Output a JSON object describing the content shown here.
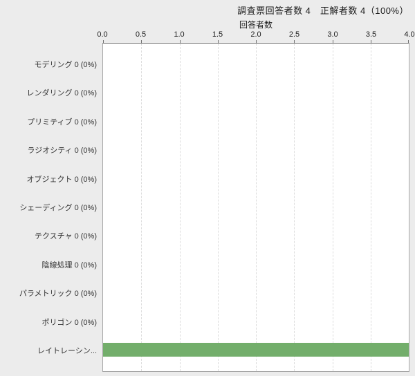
{
  "header": {
    "summary": "調査票回答者数 4　正解者数 4（100%）"
  },
  "chart": {
    "axis_title": "回答者数",
    "xticks": [
      "0.0",
      "0.5",
      "1.0",
      "1.5",
      "2.0",
      "2.5",
      "3.0",
      "3.5",
      "4.0"
    ],
    "rows": [
      {
        "display": "モデリング 0 (0%)"
      },
      {
        "display": "レンダリング 0 (0%)"
      },
      {
        "display": "プリミティブ 0 (0%)"
      },
      {
        "display": "ラジオシティ 0 (0%)"
      },
      {
        "display": "オブジェクト 0 (0%)"
      },
      {
        "display": "シェーディング 0 (0%)"
      },
      {
        "display": "テクスチャ 0 (0%)"
      },
      {
        "display": "陰線処理 0 (0%)"
      },
      {
        "display": "パラメトリック 0 (0%)"
      },
      {
        "display": "ポリゴン 0 (0%)"
      },
      {
        "display": "レイトレーシン..."
      }
    ],
    "bar_color": "#73ae6b"
  },
  "chart_data": {
    "type": "bar",
    "orientation": "horizontal",
    "title": "回答者数",
    "annotation": "調査票回答者数 4　正解者数 4（100%）",
    "categories": [
      "モデリング",
      "レンダリング",
      "プリミティブ",
      "ラジオシティ",
      "オブジェクト",
      "シェーディング",
      "テクスチャ",
      "陰線処理",
      "パラメトリック",
      "ポリゴン",
      "レイトレーシン..."
    ],
    "values": [
      0,
      0,
      0,
      0,
      0,
      0,
      0,
      0,
      0,
      0,
      4
    ],
    "category_value_labels": [
      "0 (0%)",
      "0 (0%)",
      "0 (0%)",
      "0 (0%)",
      "0 (0%)",
      "0 (0%)",
      "0 (0%)",
      "0 (0%)",
      "0 (0%)",
      "0 (0%)",
      ""
    ],
    "xlabel": "回答者数",
    "ylabel": "",
    "xlim": [
      0.0,
      4.0
    ],
    "xtick_values": [
      0.0,
      0.5,
      1.0,
      1.5,
      2.0,
      2.5,
      3.0,
      3.5,
      4.0
    ],
    "grid": "vertical-dashed",
    "legend_position": "none",
    "bar_color": "#73ae6b",
    "plot_background": "#ffffff",
    "page_background": "#ececec"
  }
}
